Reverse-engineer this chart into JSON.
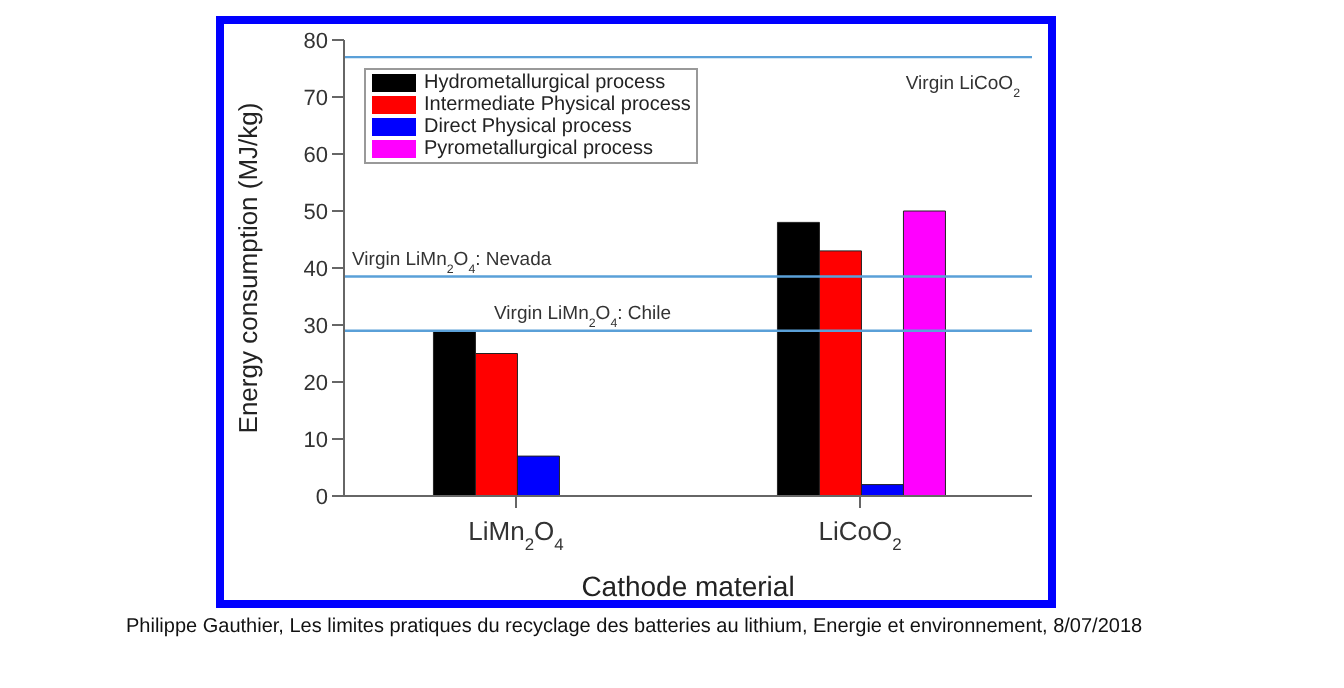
{
  "chart_data": {
    "type": "bar",
    "xlabel": "Cathode material",
    "ylabel": "Energy consumption (MJ/kg)",
    "categories": [
      "LiMn$_{2}$O$_{4}$",
      "LiCoO$_{2}$"
    ],
    "series": [
      {
        "name": "Hydrometallurgical process",
        "color": "#000000",
        "values": [
          29,
          48
        ]
      },
      {
        "name": "Intermediate Physical process",
        "color": "#ff0000",
        "values": [
          25,
          43
        ]
      },
      {
        "name": "Direct Physical process",
        "color": "#0000ff",
        "values": [
          7,
          2
        ]
      },
      {
        "name": "Pyrometallurgical process",
        "color": "#ff00ff",
        "values": [
          null,
          50
        ]
      }
    ],
    "ylim": [
      0,
      80
    ],
    "yticks": [
      0,
      10,
      20,
      30,
      40,
      50,
      60,
      70,
      80
    ],
    "ref_lines": [
      {
        "axis": "y",
        "value": 77,
        "label": "Virgin LiCoO$_{2}$",
        "color": "#5aa0d8"
      },
      {
        "axis": "y",
        "value": 38.5,
        "label": "Virgin LiMn$_{2}$O$_{4}$: Nevada",
        "color": "#5aa0d8"
      },
      {
        "axis": "y",
        "value": 29,
        "label": "Virgin LiMn$_{2}$O$_{4}$: Chile",
        "color": "#5aa0d8"
      }
    ],
    "grid": false,
    "legend": "top left",
    "annotations": [
      "Philippe Gauthier, Les limites pratiques du recyclage des batteries au lithium, Energie et environnement, 8/07/2018"
    ]
  }
}
